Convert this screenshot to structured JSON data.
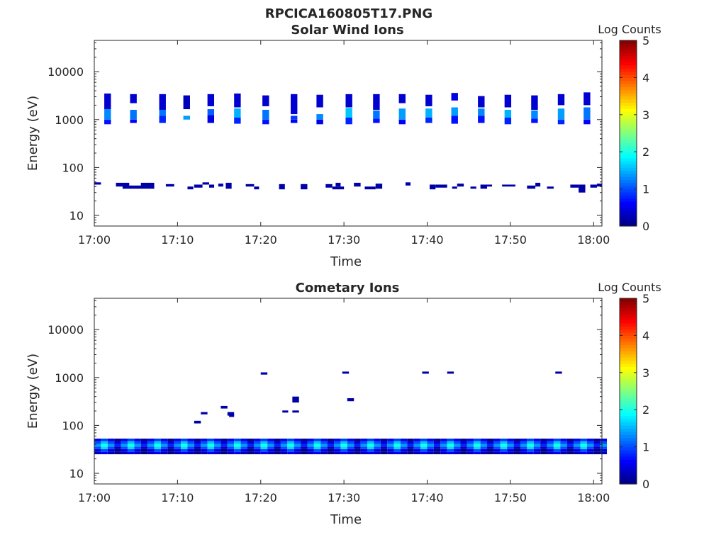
{
  "figure_title": "RPCICA160805T17.PNG",
  "colormap": [
    "#00007f",
    "#0000ff",
    "#007fff",
    "#00ffff",
    "#7fff7f",
    "#ffff00",
    "#ff7f00",
    "#ff0000",
    "#7f0000"
  ],
  "chart_data": [
    {
      "type": "heatmap",
      "title": "Solar Wind Ions",
      "xlabel": "Time",
      "ylabel": "Energy (eV)",
      "y_scale": "log",
      "ylim": [
        6,
        45000
      ],
      "xlim_minutes": [
        0,
        61
      ],
      "x_ticks": [
        "17:00",
        "17:10",
        "17:20",
        "17:30",
        "17:40",
        "17:50",
        "18:00"
      ],
      "y_ticks": [
        "10",
        "100",
        "1000",
        "10000"
      ],
      "colorbar": {
        "label": "Log Counts",
        "range": [
          0,
          5
        ],
        "ticks": [
          "0",
          "1",
          "2",
          "3",
          "4",
          "5"
        ]
      },
      "grid": false,
      "bursts": [
        {
          "t": 1.2,
          "e": [
            [
              800,
              1000,
              0.7
            ],
            [
              1000,
              1650,
              1.3
            ],
            [
              1650,
              3500,
              0.4
            ]
          ]
        },
        {
          "t": 4.3,
          "e": [
            [
              850,
              1000,
              0.6
            ],
            [
              1000,
              1600,
              1.2
            ],
            [
              2200,
              3400,
              0.4
            ]
          ]
        },
        {
          "t": 7.8,
          "e": [
            [
              850,
              1200,
              0.8
            ],
            [
              1200,
              1600,
              1.2
            ],
            [
              1600,
              3400,
              0.4
            ]
          ]
        },
        {
          "t": 10.7,
          "e": [
            [
              1000,
              1200,
              1.4
            ],
            [
              1650,
              3200,
              0.3
            ]
          ]
        },
        {
          "t": 13.6,
          "e": [
            [
              850,
              1250,
              0.5
            ],
            [
              1250,
              1650,
              1.1
            ],
            [
              1900,
              3400,
              0.4
            ]
          ]
        },
        {
          "t": 16.8,
          "e": [
            [
              820,
              1100,
              0.8
            ],
            [
              1100,
              1700,
              1.5
            ],
            [
              1800,
              3500,
              0.4
            ]
          ]
        },
        {
          "t": 20.2,
          "e": [
            [
              800,
              1000,
              0.7
            ],
            [
              1000,
              1600,
              1.2
            ],
            [
              1900,
              3200,
              0.4
            ]
          ]
        },
        {
          "t": 23.6,
          "e": [
            [
              850,
              1000,
              0.6
            ],
            [
              1000,
              1200,
              0.9
            ],
            [
              1300,
              3400,
              0.4
            ]
          ]
        },
        {
          "t": 26.7,
          "e": [
            [
              800,
              1000,
              0.5
            ],
            [
              1000,
              1300,
              1.3
            ],
            [
              1800,
              3300,
              0.4
            ]
          ]
        },
        {
          "t": 30.2,
          "e": [
            [
              800,
              1100,
              0.8
            ],
            [
              1100,
              1750,
              1.6
            ],
            [
              1800,
              3400,
              0.4
            ]
          ]
        },
        {
          "t": 33.5,
          "e": [
            [
              850,
              1050,
              0.7
            ],
            [
              1050,
              1550,
              1.2
            ],
            [
              1600,
              3400,
              0.4
            ]
          ]
        },
        {
          "t": 36.6,
          "e": [
            [
              800,
              1000,
              0.6
            ],
            [
              1000,
              1700,
              1.4
            ],
            [
              2200,
              3400,
              0.4
            ]
          ]
        },
        {
          "t": 39.8,
          "e": [
            [
              850,
              1100,
              0.8
            ],
            [
              1100,
              1700,
              1.5
            ],
            [
              1900,
              3300,
              0.4
            ]
          ]
        },
        {
          "t": 42.9,
          "e": [
            [
              820,
              1200,
              0.7
            ],
            [
              1200,
              1800,
              1.4
            ],
            [
              2500,
              3600,
              0.5
            ]
          ]
        },
        {
          "t": 46.1,
          "e": [
            [
              850,
              1200,
              0.7
            ],
            [
              1200,
              1700,
              1.3
            ],
            [
              1800,
              3100,
              0.4
            ]
          ]
        },
        {
          "t": 49.3,
          "e": [
            [
              800,
              1100,
              0.8
            ],
            [
              1100,
              1600,
              1.5
            ],
            [
              1800,
              3300,
              0.4
            ]
          ]
        },
        {
          "t": 52.5,
          "e": [
            [
              850,
              1050,
              0.7
            ],
            [
              1050,
              1550,
              1.3
            ],
            [
              1600,
              3200,
              0.4
            ]
          ]
        },
        {
          "t": 55.7,
          "e": [
            [
              800,
              1000,
              0.8
            ],
            [
              1000,
              1700,
              1.4
            ],
            [
              2000,
              3400,
              0.4
            ]
          ]
        },
        {
          "t": 58.8,
          "e": [
            [
              800,
              1000,
              0.6
            ],
            [
              1000,
              1800,
              1.2
            ],
            [
              2000,
              3700,
              0.4
            ]
          ]
        }
      ],
      "blips": [
        {
          "t0": 0.0,
          "t1": 0.8,
          "e0": 44,
          "e1": 49,
          "v": 0.2
        },
        {
          "t0": 2.6,
          "t1": 4.2,
          "e0": 40,
          "e1": 48,
          "v": 0.2
        },
        {
          "t0": 3.4,
          "t1": 7.2,
          "e0": 36,
          "e1": 42,
          "v": 0.2
        },
        {
          "t0": 5.6,
          "t1": 7.2,
          "e0": 40,
          "e1": 48,
          "v": 0.2
        },
        {
          "t0": 8.6,
          "t1": 9.6,
          "e0": 40,
          "e1": 45,
          "v": 0.2
        },
        {
          "t0": 11.2,
          "t1": 11.9,
          "e0": 35,
          "e1": 40,
          "v": 0.2
        },
        {
          "t0": 12.0,
          "t1": 13.0,
          "e0": 38,
          "e1": 44,
          "v": 0.2
        },
        {
          "t0": 13.0,
          "t1": 13.8,
          "e0": 44,
          "e1": 49,
          "v": 0.2
        },
        {
          "t0": 13.8,
          "t1": 14.4,
          "e0": 38,
          "e1": 44,
          "v": 0.2
        },
        {
          "t0": 14.9,
          "t1": 15.5,
          "e0": 40,
          "e1": 46,
          "v": 0.2
        },
        {
          "t0": 15.8,
          "t1": 16.5,
          "e0": 36,
          "e1": 48,
          "v": 0.2
        },
        {
          "t0": 18.2,
          "t1": 19.2,
          "e0": 40,
          "e1": 45,
          "v": 0.2
        },
        {
          "t0": 19.2,
          "t1": 19.8,
          "e0": 35,
          "e1": 40,
          "v": 0.2
        },
        {
          "t0": 22.2,
          "t1": 22.9,
          "e0": 35,
          "e1": 45,
          "v": 0.2
        },
        {
          "t0": 24.8,
          "t1": 25.6,
          "e0": 35,
          "e1": 45,
          "v": 0.2
        },
        {
          "t0": 27.8,
          "t1": 28.6,
          "e0": 38,
          "e1": 45,
          "v": 0.2
        },
        {
          "t0": 28.6,
          "t1": 30.0,
          "e0": 35,
          "e1": 40,
          "v": 0.2
        },
        {
          "t0": 29.0,
          "t1": 29.6,
          "e0": 40,
          "e1": 48,
          "v": 0.2
        },
        {
          "t0": 31.2,
          "t1": 32.0,
          "e0": 40,
          "e1": 48,
          "v": 0.2
        },
        {
          "t0": 32.5,
          "t1": 33.8,
          "e0": 35,
          "e1": 40,
          "v": 0.2
        },
        {
          "t0": 33.8,
          "t1": 34.6,
          "e0": 36,
          "e1": 46,
          "v": 0.2
        },
        {
          "t0": 37.4,
          "t1": 38.0,
          "e0": 42,
          "e1": 49,
          "v": 0.2
        },
        {
          "t0": 40.3,
          "t1": 41.0,
          "e0": 35,
          "e1": 44,
          "v": 0.2
        },
        {
          "t0": 41.0,
          "t1": 42.4,
          "e0": 38,
          "e1": 44,
          "v": 0.2
        },
        {
          "t0": 43.0,
          "t1": 43.6,
          "e0": 36,
          "e1": 40,
          "v": 0.2
        },
        {
          "t0": 43.6,
          "t1": 44.4,
          "e0": 40,
          "e1": 46,
          "v": 0.2
        },
        {
          "t0": 45.2,
          "t1": 45.9,
          "e0": 36,
          "e1": 40,
          "v": 0.2
        },
        {
          "t0": 46.4,
          "t1": 47.2,
          "e0": 36,
          "e1": 44,
          "v": 0.2
        },
        {
          "t0": 47.2,
          "t1": 47.8,
          "e0": 40,
          "e1": 44,
          "v": 0.2
        },
        {
          "t0": 49.0,
          "t1": 50.6,
          "e0": 40,
          "e1": 44,
          "v": 0.2
        },
        {
          "t0": 52.0,
          "t1": 53.0,
          "e0": 36,
          "e1": 42,
          "v": 0.2
        },
        {
          "t0": 53.0,
          "t1": 53.6,
          "e0": 40,
          "e1": 48,
          "v": 0.2
        },
        {
          "t0": 54.4,
          "t1": 55.2,
          "e0": 36,
          "e1": 40,
          "v": 0.2
        },
        {
          "t0": 57.2,
          "t1": 58.2,
          "e0": 38,
          "e1": 44,
          "v": 0.2
        },
        {
          "t0": 58.2,
          "t1": 59.0,
          "e0": 30,
          "e1": 44,
          "v": 0.2
        },
        {
          "t0": 59.6,
          "t1": 60.4,
          "e0": 38,
          "e1": 44,
          "v": 0.2
        },
        {
          "t0": 60.4,
          "t1": 61.0,
          "e0": 40,
          "e1": 46,
          "v": 0.2
        }
      ]
    },
    {
      "type": "heatmap",
      "title": "Cometary Ions",
      "xlabel": "Time",
      "ylabel": "Energy (eV)",
      "y_scale": "log",
      "ylim": [
        6,
        45000
      ],
      "xlim_minutes": [
        0,
        61
      ],
      "x_ticks": [
        "17:00",
        "17:10",
        "17:20",
        "17:30",
        "17:40",
        "17:50",
        "18:00"
      ],
      "y_ticks": [
        "10",
        "100",
        "1000",
        "10000"
      ],
      "colorbar": {
        "label": "Log Counts",
        "range": [
          0,
          5
        ],
        "ticks": [
          "0",
          "1",
          "2",
          "3",
          "4",
          "5"
        ]
      },
      "grid": false,
      "band": {
        "e_edges": [
          25,
          28,
          32,
          36,
          41,
          47,
          53
        ],
        "period_min": 3.2,
        "base": [
          0.3,
          0.5,
          1.0,
          1.4,
          1.0,
          0.5
        ],
        "amp": [
          0.3,
          0.5,
          0.7,
          0.6,
          0.6,
          0.4
        ]
      },
      "blips": [
        {
          "t0": 12.0,
          "t1": 12.8,
          "e0": 110,
          "e1": 125,
          "v": 0.2
        },
        {
          "t0": 12.8,
          "t1": 13.6,
          "e0": 170,
          "e1": 190,
          "v": 0.2
        },
        {
          "t0": 15.2,
          "t1": 16.0,
          "e0": 225,
          "e1": 255,
          "v": 0.2
        },
        {
          "t0": 16.0,
          "t1": 16.8,
          "e0": 160,
          "e1": 190,
          "v": 0.2
        },
        {
          "t0": 16.2,
          "t1": 16.8,
          "e0": 150,
          "e1": 170,
          "v": 0.2
        },
        {
          "t0": 20.0,
          "t1": 20.8,
          "e0": 1150,
          "e1": 1280,
          "v": 0.2
        },
        {
          "t0": 22.6,
          "t1": 23.3,
          "e0": 185,
          "e1": 205,
          "v": 0.2
        },
        {
          "t0": 23.8,
          "t1": 24.6,
          "e0": 185,
          "e1": 205,
          "v": 0.2
        },
        {
          "t0": 23.8,
          "t1": 24.6,
          "e0": 300,
          "e1": 400,
          "v": 0.2
        },
        {
          "t0": 29.8,
          "t1": 30.6,
          "e0": 1200,
          "e1": 1330,
          "v": 0.2
        },
        {
          "t0": 30.4,
          "t1": 31.2,
          "e0": 320,
          "e1": 370,
          "v": 0.2
        },
        {
          "t0": 39.4,
          "t1": 40.2,
          "e0": 1200,
          "e1": 1330,
          "v": 0.2
        },
        {
          "t0": 42.4,
          "t1": 43.2,
          "e0": 1200,
          "e1": 1330,
          "v": 0.2
        },
        {
          "t0": 55.4,
          "t1": 56.2,
          "e0": 1200,
          "e1": 1330,
          "v": 0.2
        }
      ]
    }
  ]
}
